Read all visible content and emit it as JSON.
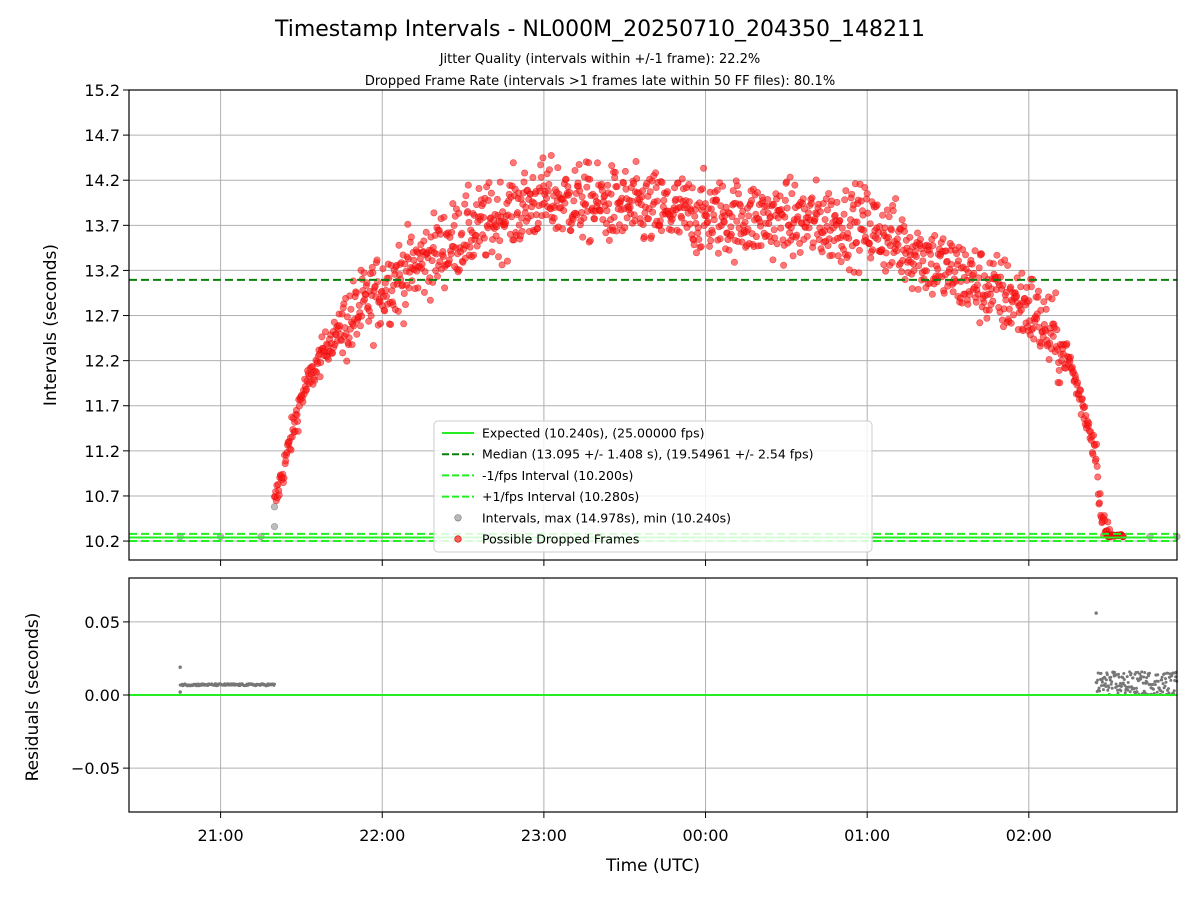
{
  "chart_data": [
    {
      "type": "scatter",
      "panel": "intervals",
      "title": "Timestamp Intervals - NL000M_20250710_204350_148211",
      "subtitle_1": "Jitter Quality (intervals within +/-1 frame): 22.2%",
      "subtitle_2": "Dropped Frame Rate (intervals >1 frames late within 50 FF files): 80.1%",
      "ylabel": "Intervals (seconds)",
      "ylim": [
        9.99,
        15.2
      ],
      "xlim": [
        "20:26",
        "02:55"
      ],
      "y_ticks": [
        "10.2",
        "10.7",
        "11.2",
        "11.7",
        "12.2",
        "12.7",
        "13.2",
        "13.7",
        "14.2",
        "14.7",
        "15.2"
      ],
      "grid": true,
      "legend_position": "lower center",
      "series": [
        {
          "name": "Expected (10.240s), (25.00000 fps)",
          "style": "solid line",
          "color": "#22ee22",
          "y": 10.24
        },
        {
          "name": "Median (13.095 +/- 1.408 s), (19.54961 +/- 2.54 fps)",
          "style": "dashed line",
          "color": "#0a800a",
          "y": 13.095
        },
        {
          "name": "-1/fps Interval (10.200s)",
          "style": "dashed line",
          "color": "#22ee22",
          "y": 10.2
        },
        {
          "name": "+1/fps Interval (10.280s)",
          "style": "dashed line",
          "color": "#22ee22",
          "y": 10.28
        },
        {
          "name": "Intervals, max (14.978s), min (10.240s)",
          "style": "points",
          "color": "#888888",
          "points": [
            [
              "20:45",
              10.25
            ],
            [
              "21:00",
              10.25
            ],
            [
              "21:15",
              10.25
            ],
            [
              "21:20",
              10.36
            ],
            [
              "21:20",
              10.58
            ],
            [
              "02:35",
              10.25
            ],
            [
              "02:45",
              10.25
            ],
            [
              "02:55",
              10.25
            ]
          ]
        },
        {
          "name": "Possible Dropped Frames",
          "style": "points",
          "color": "#ff2020",
          "envelope": [
            [
              "21:20",
              10.6
            ],
            [
              "21:30",
              11.8
            ],
            [
              "21:40",
              12.4
            ],
            [
              "22:00",
              13.0
            ],
            [
              "22:30",
              13.6
            ],
            [
              "23:00",
              14.0
            ],
            [
              "00:00",
              13.8
            ],
            [
              "01:00",
              13.7
            ],
            [
              "01:30",
              13.2
            ],
            [
              "02:00",
              12.8
            ],
            [
              "02:15",
              12.2
            ],
            [
              "02:25",
              11.2
            ],
            [
              "02:27",
              10.4
            ],
            [
              "02:30",
              10.25
            ]
          ]
        }
      ]
    },
    {
      "type": "scatter",
      "panel": "residuals",
      "ylabel": "Residuals (seconds)",
      "xlabel": "Time (UTC)",
      "ylim": [
        -0.08,
        0.08
      ],
      "xlim": [
        "20:26",
        "02:55"
      ],
      "x_ticks": [
        "21:00",
        "22:00",
        "23:00",
        "00:00",
        "01:00",
        "02:00"
      ],
      "y_ticks": [
        "0.05",
        "0.00",
        "−0.05"
      ],
      "grid": true,
      "series": [
        {
          "name": "",
          "style": "solid line",
          "color": "#22ee22",
          "y": 0.0
        },
        {
          "name": "",
          "style": "points",
          "color": "#777777",
          "segments": [
            {
              "from": "20:45",
              "to": "21:20",
              "level": 0.007
            },
            {
              "from": "02:25",
              "to": "02:55",
              "range": [
                0.0,
                0.016
              ]
            }
          ],
          "outliers": [
            [
              "20:45",
              0.019
            ],
            [
              "20:45",
              0.002
            ],
            [
              "02:25",
              0.056
            ]
          ]
        }
      ]
    }
  ]
}
